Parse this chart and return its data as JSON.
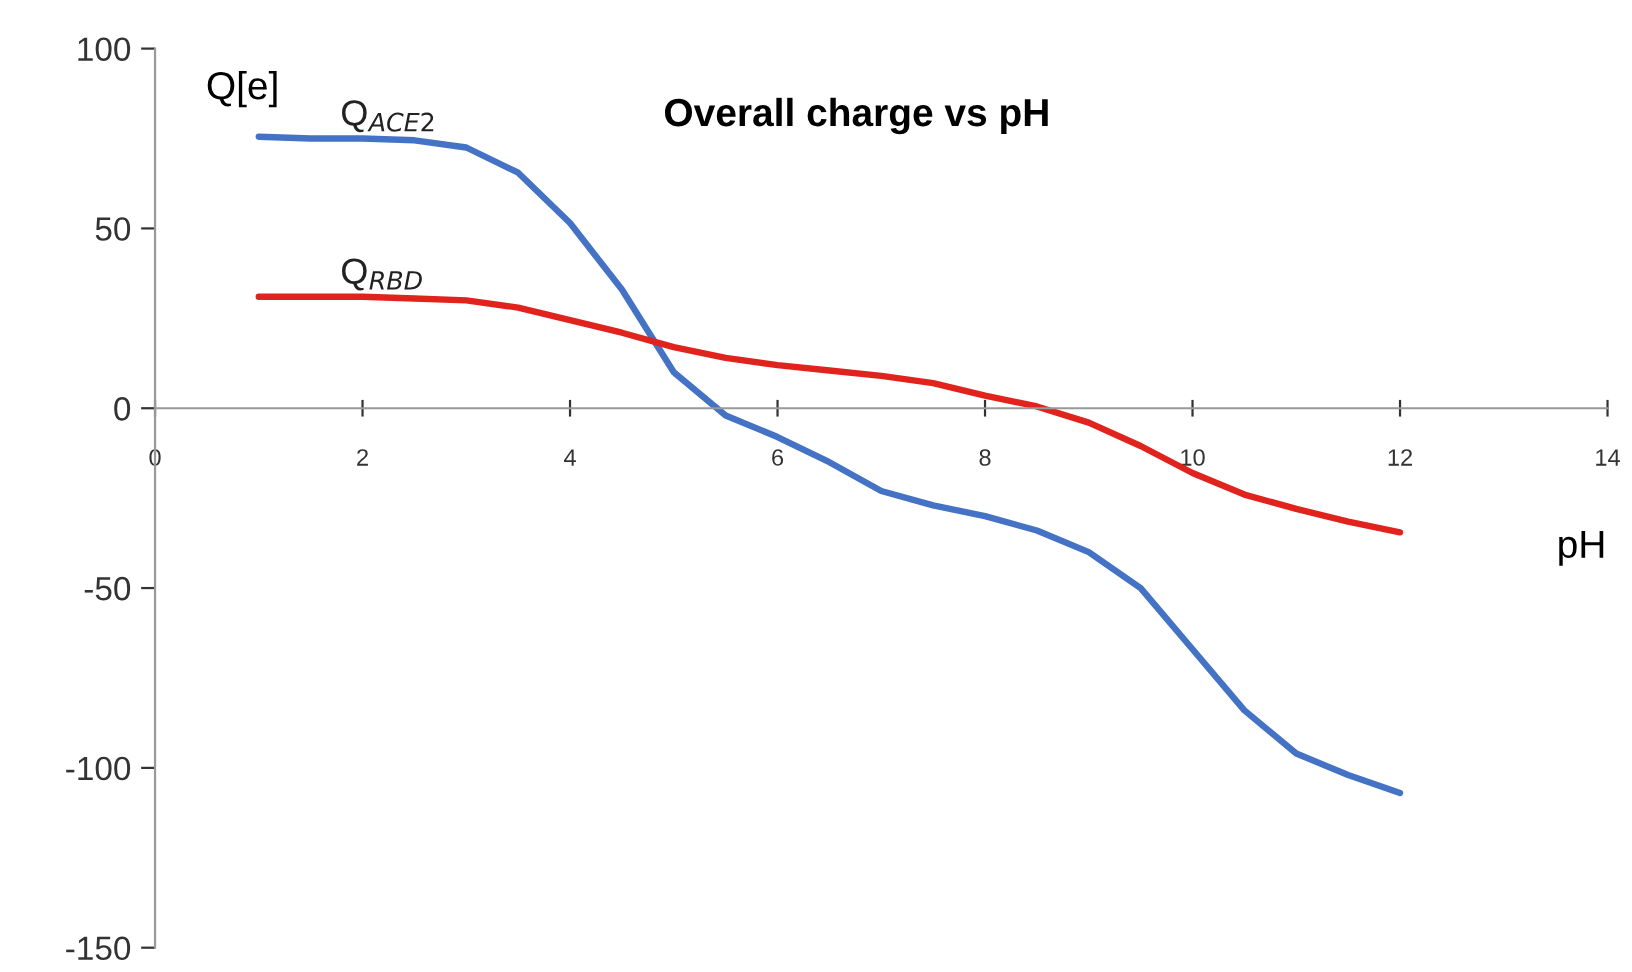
{
  "chart_data": {
    "type": "line",
    "title": "Overall charge vs pH",
    "xlabel": "pH",
    "ylabel": "Q[e]",
    "xlim": [
      0,
      14
    ],
    "xticks": [
      0,
      2,
      4,
      6,
      8,
      10,
      12,
      14
    ],
    "ylim": [
      -150,
      100
    ],
    "yticks": [
      -150,
      -100,
      -50,
      0,
      50,
      100
    ],
    "grid": false,
    "legend": false,
    "marker": "none",
    "line_style": "solid",
    "series": [
      {
        "name": "Q$_{ACE2}$",
        "color": "#4472c4",
        "x": [
          1,
          1.5,
          2,
          2.5,
          3,
          3.5,
          4,
          4.5,
          5,
          5.5,
          6,
          6.5,
          7,
          7.5,
          8,
          8.5,
          9,
          9.5,
          10,
          10.5,
          11,
          11.5,
          12
        ],
        "values": [
          75.5,
          75,
          75,
          74.5,
          72.5,
          65.5,
          51.5,
          33,
          10,
          -2,
          -8,
          -15,
          -23,
          -27,
          -30,
          -34,
          -40,
          -50,
          -67,
          -84,
          -96,
          -102,
          -107
        ]
      },
      {
        "name": "Q$_{RBD}$",
        "color": "#e0231c",
        "x": [
          1,
          1.5,
          2,
          2.5,
          3,
          3.5,
          4,
          4.5,
          5,
          5.5,
          6,
          6.5,
          7,
          7.5,
          8,
          8.5,
          9,
          9.5,
          10,
          10.5,
          11,
          11.5,
          12
        ],
        "values": [
          31,
          31,
          31,
          30.5,
          30,
          28,
          24.5,
          21,
          17,
          14,
          12,
          10.5,
          9,
          7,
          3.5,
          0.5,
          -4,
          -10.5,
          -18,
          -24,
          -28,
          -31.5,
          -34.5
        ]
      }
    ]
  }
}
